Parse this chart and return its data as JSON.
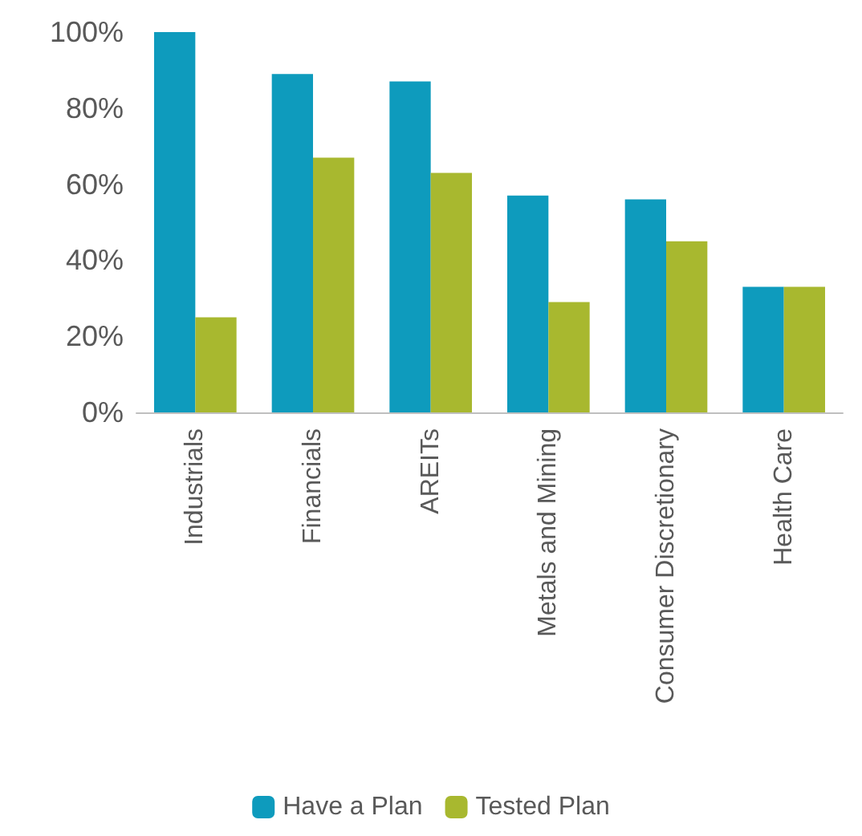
{
  "chart_data": {
    "type": "bar",
    "categories": [
      "Industrials",
      "Financials",
      "AREITs",
      "Metals and Mining",
      "Consumer Discretionary",
      "Health Care"
    ],
    "series": [
      {
        "name": "Have a Plan",
        "color": "#0e9bbd",
        "values": [
          100,
          89,
          87,
          57,
          56,
          33
        ]
      },
      {
        "name": "Tested Plan",
        "color": "#a8b82f",
        "values": [
          25,
          67,
          63,
          29,
          45,
          33
        ]
      }
    ],
    "ylim": [
      0,
      100
    ],
    "yticks": [
      {
        "value": 0,
        "label": "0%"
      },
      {
        "value": 20,
        "label": "20%"
      },
      {
        "value": 40,
        "label": "40%"
      },
      {
        "value": 60,
        "label": "60%"
      },
      {
        "value": 80,
        "label": "80%"
      },
      {
        "value": 100,
        "label": "100%"
      }
    ],
    "grid": false,
    "legend": "bottom"
  }
}
